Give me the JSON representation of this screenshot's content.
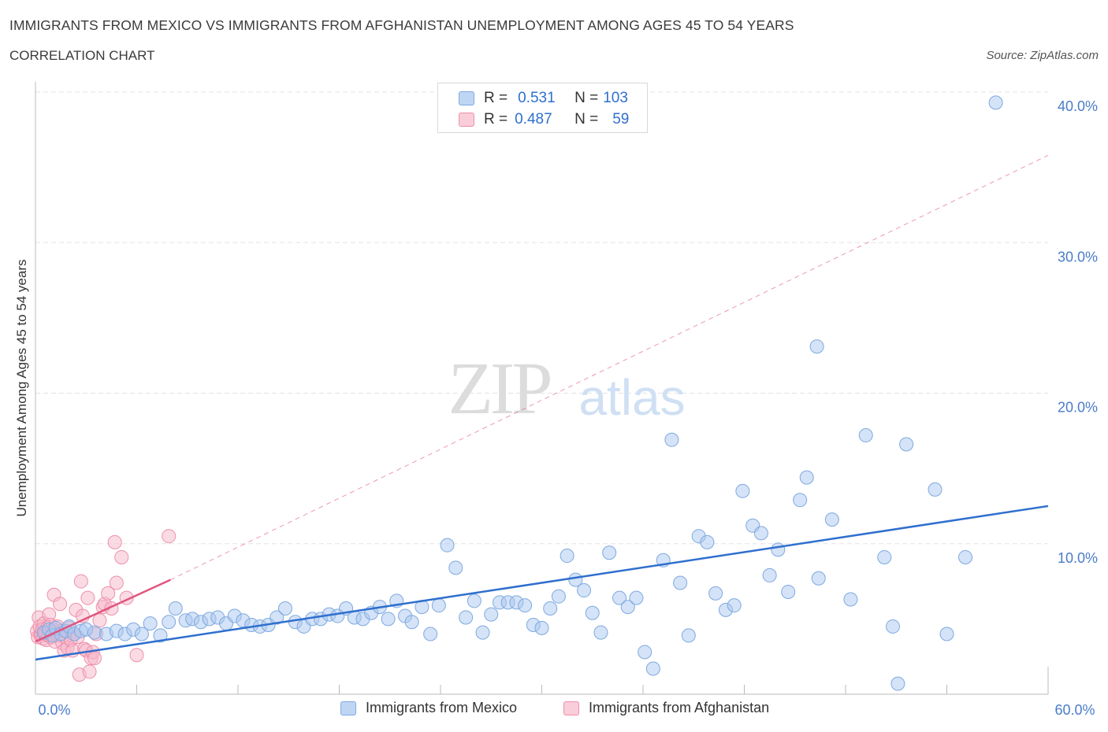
{
  "title": "IMMIGRANTS FROM MEXICO VS IMMIGRANTS FROM AFGHANISTAN UNEMPLOYMENT AMONG AGES 45 TO 54 YEARS",
  "subtitle": "CORRELATION CHART",
  "source": "Source: ZipAtlas.com",
  "watermark": {
    "zip": "ZIP",
    "atlas": "atlas"
  },
  "legend": {
    "mexico": {
      "r_label": "R =",
      "r_value": "0.531",
      "n_label": "N =",
      "n_value": "103"
    },
    "afghanistan": {
      "r_label": "R =",
      "r_value": "0.487",
      "n_label": "N =",
      "n_value": "59"
    }
  },
  "colors": {
    "mexico_fill": "#a9c8ef",
    "mexico_stroke": "#7fa9e0",
    "mexico_line": "#2f6fce",
    "afghanistan_fill": "#f6b8c9",
    "afghanistan_stroke": "#ee8fab",
    "afghanistan_line": "#e0557f",
    "tick_text": "#4a7cc9",
    "grid": "#e3e3e3"
  },
  "chart_data": {
    "type": "scatter",
    "xlabel": "",
    "ylabel": "Unemployment Among Ages 45 to 54 years",
    "xlim": [
      0,
      60
    ],
    "ylim": [
      0,
      40
    ],
    "x_tick_labels": [
      "0.0%",
      "60.0%"
    ],
    "y_ticks": [
      10,
      20,
      30,
      40
    ],
    "y_tick_labels": [
      "10.0%",
      "20.0%",
      "30.0%",
      "40.0%"
    ],
    "grid": true,
    "legend_position": "top-center",
    "series": [
      {
        "name": "Immigrants from Mexico",
        "trend": {
          "x0": 0,
          "y0": 2.3,
          "x1": 60,
          "y1": 12.5
        },
        "points": [
          [
            0.5,
            4.1
          ],
          [
            0.8,
            4.3
          ],
          [
            1.0,
            3.9
          ],
          [
            1.2,
            4.4
          ],
          [
            1.5,
            4.0
          ],
          [
            1.8,
            4.2
          ],
          [
            2.0,
            4.5
          ],
          [
            2.3,
            4.0
          ],
          [
            2.7,
            4.2
          ],
          [
            3.0,
            4.3
          ],
          [
            3.5,
            4.1
          ],
          [
            4.2,
            4.0
          ],
          [
            4.8,
            4.2
          ],
          [
            5.3,
            4.0
          ],
          [
            5.8,
            4.3
          ],
          [
            6.3,
            4.0
          ],
          [
            6.8,
            4.7
          ],
          [
            7.4,
            3.9
          ],
          [
            7.9,
            4.8
          ],
          [
            8.3,
            5.7
          ],
          [
            8.9,
            4.9
          ],
          [
            9.3,
            5.0
          ],
          [
            9.8,
            4.8
          ],
          [
            10.3,
            5.0
          ],
          [
            10.8,
            5.1
          ],
          [
            11.3,
            4.7
          ],
          [
            11.8,
            5.2
          ],
          [
            12.3,
            4.9
          ],
          [
            12.8,
            4.6
          ],
          [
            13.3,
            4.5
          ],
          [
            13.8,
            4.6
          ],
          [
            14.3,
            5.1
          ],
          [
            14.8,
            5.7
          ],
          [
            15.4,
            4.8
          ],
          [
            15.9,
            4.5
          ],
          [
            16.4,
            5.0
          ],
          [
            16.9,
            5.0
          ],
          [
            17.4,
            5.3
          ],
          [
            17.9,
            5.2
          ],
          [
            18.4,
            5.7
          ],
          [
            18.9,
            5.1
          ],
          [
            19.4,
            5.0
          ],
          [
            19.9,
            5.4
          ],
          [
            20.4,
            5.8
          ],
          [
            20.9,
            5.0
          ],
          [
            21.4,
            6.2
          ],
          [
            21.9,
            5.2
          ],
          [
            22.3,
            4.8
          ],
          [
            22.9,
            5.8
          ],
          [
            23.4,
            4.0
          ],
          [
            23.9,
            5.9
          ],
          [
            24.4,
            9.9
          ],
          [
            24.9,
            8.4
          ],
          [
            25.5,
            5.1
          ],
          [
            26.0,
            6.2
          ],
          [
            26.5,
            4.1
          ],
          [
            27.0,
            5.3
          ],
          [
            27.5,
            6.1
          ],
          [
            28.0,
            6.1
          ],
          [
            28.5,
            6.1
          ],
          [
            29.0,
            5.9
          ],
          [
            29.5,
            4.6
          ],
          [
            30.0,
            4.4
          ],
          [
            30.5,
            5.7
          ],
          [
            31.0,
            6.5
          ],
          [
            31.5,
            9.2
          ],
          [
            32.0,
            7.6
          ],
          [
            32.5,
            6.9
          ],
          [
            33.0,
            5.4
          ],
          [
            33.5,
            4.1
          ],
          [
            34.0,
            9.4
          ],
          [
            34.6,
            6.4
          ],
          [
            35.1,
            5.8
          ],
          [
            35.6,
            6.4
          ],
          [
            36.1,
            2.8
          ],
          [
            36.6,
            1.7
          ],
          [
            37.2,
            8.9
          ],
          [
            37.7,
            16.9
          ],
          [
            38.2,
            7.4
          ],
          [
            38.7,
            3.9
          ],
          [
            39.3,
            10.5
          ],
          [
            39.8,
            10.1
          ],
          [
            40.3,
            6.7
          ],
          [
            40.9,
            5.6
          ],
          [
            41.4,
            5.9
          ],
          [
            41.9,
            13.5
          ],
          [
            42.5,
            11.2
          ],
          [
            43.0,
            10.7
          ],
          [
            43.5,
            7.9
          ],
          [
            44.0,
            9.6
          ],
          [
            44.6,
            6.8
          ],
          [
            45.3,
            12.9
          ],
          [
            45.7,
            14.4
          ],
          [
            46.3,
            23.1
          ],
          [
            46.4,
            7.7
          ],
          [
            47.2,
            11.6
          ],
          [
            48.3,
            6.3
          ],
          [
            49.2,
            17.2
          ],
          [
            50.3,
            9.1
          ],
          [
            50.8,
            4.5
          ],
          [
            51.1,
            0.7
          ],
          [
            51.6,
            16.6
          ],
          [
            53.3,
            13.6
          ],
          [
            54.0,
            4.0
          ],
          [
            55.1,
            9.1
          ],
          [
            56.9,
            39.3
          ]
        ]
      },
      {
        "name": "Immigrants from Afghanistan",
        "trend": {
          "x0": 0,
          "y0": 3.5,
          "x1": 8,
          "y1": 7.6
        },
        "trend_extension": {
          "x0": 8,
          "y0": 7.6,
          "x1": 60,
          "y1": 35.8
        },
        "points": [
          [
            0.1,
            4.2
          ],
          [
            0.15,
            3.8
          ],
          [
            0.2,
            5.1
          ],
          [
            0.25,
            4.5
          ],
          [
            0.3,
            3.9
          ],
          [
            0.35,
            4.0
          ],
          [
            0.4,
            4.3
          ],
          [
            0.45,
            3.7
          ],
          [
            0.5,
            4.7
          ],
          [
            0.55,
            4.0
          ],
          [
            0.6,
            4.1
          ],
          [
            0.65,
            3.6
          ],
          [
            0.7,
            4.4
          ],
          [
            0.75,
            3.9
          ],
          [
            0.8,
            5.3
          ],
          [
            0.85,
            4.2
          ],
          [
            0.9,
            4.6
          ],
          [
            0.95,
            3.8
          ],
          [
            1.0,
            4.0
          ],
          [
            1.05,
            4.3
          ],
          [
            1.1,
            6.6
          ],
          [
            1.15,
            3.5
          ],
          [
            1.2,
            4.1
          ],
          [
            1.3,
            4.5
          ],
          [
            1.35,
            3.9
          ],
          [
            1.45,
            6.0
          ],
          [
            1.55,
            4.2
          ],
          [
            1.6,
            3.4
          ],
          [
            1.7,
            2.9
          ],
          [
            1.8,
            3.8
          ],
          [
            1.9,
            3.1
          ],
          [
            2.0,
            4.4
          ],
          [
            2.1,
            3.6
          ],
          [
            2.2,
            2.9
          ],
          [
            2.3,
            4.0
          ],
          [
            2.4,
            5.6
          ],
          [
            2.5,
            3.8
          ],
          [
            2.6,
            1.3
          ],
          [
            2.7,
            7.5
          ],
          [
            2.8,
            5.2
          ],
          [
            2.9,
            3.0
          ],
          [
            3.0,
            2.9
          ],
          [
            3.1,
            6.4
          ],
          [
            3.2,
            1.5
          ],
          [
            3.3,
            2.4
          ],
          [
            3.4,
            2.8
          ],
          [
            3.5,
            2.4
          ],
          [
            3.6,
            4.0
          ],
          [
            3.8,
            4.9
          ],
          [
            4.0,
            5.8
          ],
          [
            4.1,
            6.0
          ],
          [
            4.3,
            6.7
          ],
          [
            4.5,
            5.7
          ],
          [
            4.7,
            10.1
          ],
          [
            4.8,
            7.4
          ],
          [
            5.1,
            9.1
          ],
          [
            5.4,
            6.4
          ],
          [
            6.0,
            2.6
          ],
          [
            7.9,
            10.5
          ]
        ]
      }
    ]
  },
  "bottom_legend": {
    "mexico": "Immigrants from Mexico",
    "afghanistan": "Immigrants from Afghanistan"
  }
}
